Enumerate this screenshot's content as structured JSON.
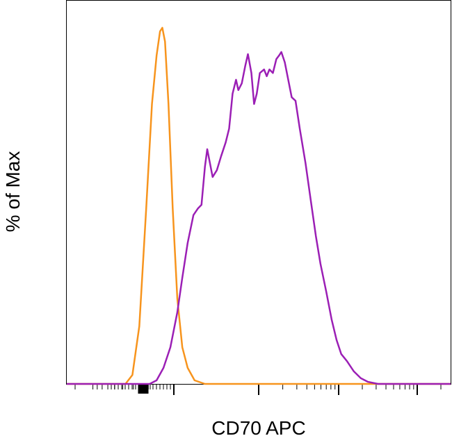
{
  "chart_data": {
    "type": "line",
    "xlabel": "CD70 APC",
    "ylabel": "% of Max",
    "xlim": [
      0,
      100
    ],
    "ylim": [
      0,
      100
    ],
    "series": [
      {
        "color": "#f7941d",
        "x": [
          0,
          15.3,
          17.1,
          18.9,
          20.7,
          22.2,
          23.4,
          24.3,
          24.9,
          25.6,
          26.5,
          27.6,
          28.8,
          30.1,
          31.5,
          33.3,
          36.0,
          100
        ],
        "values": [
          0,
          0,
          2.5,
          16.2,
          49.3,
          78.6,
          92.2,
          99.0,
          100,
          96.1,
          78.6,
          49.3,
          24.0,
          10.3,
          4.5,
          1.0,
          0,
          0
        ]
      },
      {
        "color": "#9b1fb5",
        "x": [
          0,
          21.6,
          23.4,
          25.2,
          27.0,
          28.8,
          30.1,
          31.5,
          33.0,
          34.2,
          35.1,
          36.0,
          36.6,
          37.3,
          38.0,
          39.1,
          40.2,
          41.4,
          42.3,
          43.2,
          44.1,
          44.7,
          45.6,
          46.5,
          47.2,
          48.1,
          48.8,
          49.5,
          50.3,
          51.4,
          52.1,
          52.8,
          53.7,
          54.6,
          55.3,
          55.9,
          56.8,
          57.7,
          58.6,
          59.6,
          60.7,
          62.2,
          63.6,
          64.9,
          66.1,
          67.6,
          69.0,
          70.3,
          71.5,
          73.0,
          74.8,
          76.6,
          78.4,
          81.1,
          100
        ],
        "values": [
          0,
          0,
          1.0,
          4.5,
          10.3,
          20.1,
          29.8,
          39.6,
          47.4,
          49.3,
          50.3,
          61.0,
          65.9,
          62.0,
          58.1,
          60.0,
          63.9,
          67.8,
          71.7,
          81.5,
          85.4,
          82.5,
          84.4,
          89.3,
          92.6,
          87.3,
          78.6,
          81.5,
          87.3,
          88.3,
          86.4,
          88.3,
          87.3,
          91.2,
          92.2,
          93.2,
          90.3,
          85.4,
          80.5,
          79.5,
          71.7,
          62.0,
          51.3,
          41.5,
          33.7,
          25.9,
          18.1,
          12.3,
          8.4,
          6.4,
          3.5,
          1.6,
          0.6,
          0,
          0
        ]
      }
    ]
  }
}
